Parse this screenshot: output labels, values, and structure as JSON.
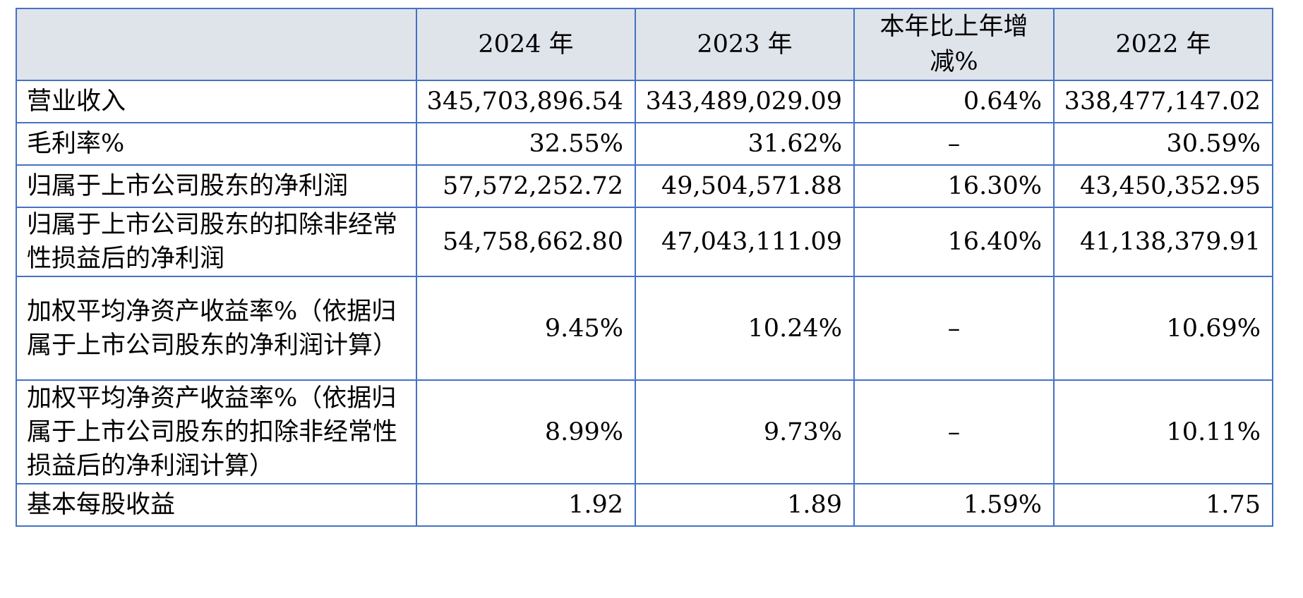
{
  "table": {
    "headers": [
      "",
      "2024 年",
      "2023 年",
      "本年比上年增减%",
      "2022 年"
    ],
    "rows": [
      {
        "label": "营业收入",
        "v2024": "345,703,896.54",
        "v2023": "343,489,029.09",
        "change": "0.64%",
        "v2022": "338,477,147.02"
      },
      {
        "label": "毛利率%",
        "v2024": "32.55%",
        "v2023": "31.62%",
        "change": "–",
        "v2022": "30.59%"
      },
      {
        "label": "归属于上市公司股东的净利润",
        "v2024": "57,572,252.72",
        "v2023": "49,504,571.88",
        "change": "16.30%",
        "v2022": "43,450,352.95"
      },
      {
        "label": "归属于上市公司股东的扣除非经常性损益后的净利润",
        "v2024": "54,758,662.80",
        "v2023": "47,043,111.09",
        "change": "16.40%",
        "v2022": "41,138,379.91"
      },
      {
        "label": "加权平均净资产收益率%（依据归属于上市公司股东的净利润计算）",
        "v2024": "9.45%",
        "v2023": "10.24%",
        "change": "–",
        "v2022": "10.69%"
      },
      {
        "label": "加权平均净资产收益率%（依据归属于上市公司股东的扣除非经常性损益后的净利润计算）",
        "v2024": "8.99%",
        "v2023": "9.73%",
        "change": "–",
        "v2022": "10.11%"
      },
      {
        "label": "基本每股收益",
        "v2024": "1.92",
        "v2023": "1.89",
        "change": "1.59%",
        "v2022": "1.75"
      }
    ]
  }
}
